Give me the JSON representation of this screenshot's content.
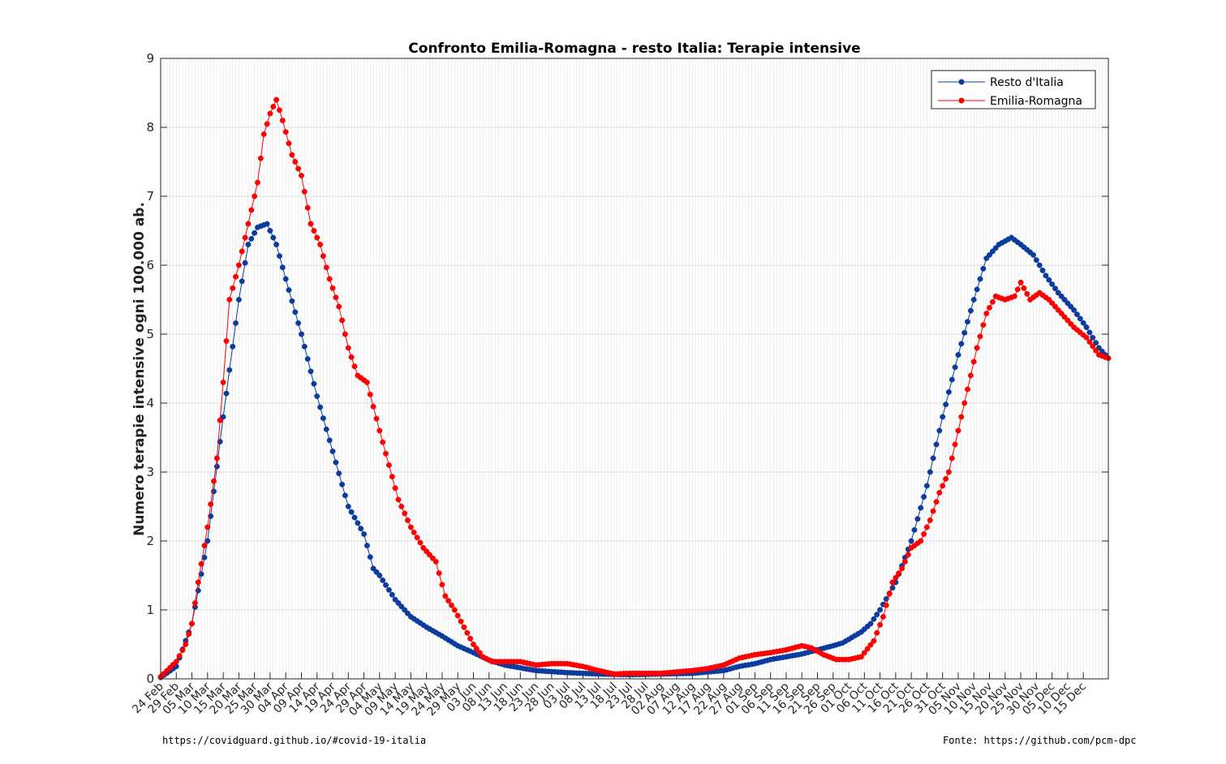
{
  "chart_data": {
    "type": "line",
    "title": "Confronto Emilia-Romagna - resto Italia: Terapie intensive",
    "ylabel": "Numero terapie intensive ogni 100.000 ab.",
    "xlabel": "",
    "ylim": [
      0,
      9
    ],
    "yticks": [
      "0",
      "1",
      "2",
      "3",
      "4",
      "5",
      "6",
      "7",
      "8",
      "9"
    ],
    "grid": true,
    "legend_position": "top-right",
    "x_tick_labels": [
      "24 Feb",
      "29 Feb",
      "05 Mar",
      "10 Mar",
      "15 Mar",
      "20 Mar",
      "25 Mar",
      "30 Mar",
      "04 Apr",
      "09 Apr",
      "14 Apr",
      "19 Apr",
      "24 Apr",
      "29 Apr",
      "04 May",
      "09 May",
      "14 May",
      "19 May",
      "24 May",
      "29 May",
      "03 Jun",
      "08 Jun",
      "13 Jun",
      "18 Jun",
      "23 Jun",
      "28 Jun",
      "03 Jul",
      "08 Jul",
      "13 Jul",
      "18 Jul",
      "23 Jul",
      "28 Jul",
      "02 Aug",
      "07 Aug",
      "12 Aug",
      "17 Aug",
      "22 Aug",
      "27 Aug",
      "01 Sep",
      "06 Sep",
      "11 Sep",
      "16 Sep",
      "21 Sep",
      "26 Sep",
      "01 Oct",
      "06 Oct",
      "11 Oct",
      "16 Oct",
      "21 Oct",
      "26 Oct",
      "31 Oct",
      "05 Nov",
      "10 Nov",
      "15 Nov",
      "20 Nov",
      "25 Nov",
      "30 Nov",
      "05 Dec",
      "10 Dec",
      "15 Dec"
    ],
    "x_start": "24 Feb",
    "series": [
      {
        "name": "Resto d'Italia",
        "color": "#0a3c9e",
        "keypoints": [
          [
            0,
            0.02
          ],
          [
            5,
            0.18
          ],
          [
            10,
            0.8
          ],
          [
            15,
            2.0
          ],
          [
            20,
            3.8
          ],
          [
            25,
            5.5
          ],
          [
            28,
            6.3
          ],
          [
            31,
            6.55
          ],
          [
            34,
            6.6
          ],
          [
            37,
            6.3
          ],
          [
            40,
            5.8
          ],
          [
            45,
            5.0
          ],
          [
            50,
            4.1
          ],
          [
            55,
            3.3
          ],
          [
            60,
            2.5
          ],
          [
            65,
            2.1
          ],
          [
            68,
            1.6
          ],
          [
            70,
            1.5
          ],
          [
            75,
            1.15
          ],
          [
            80,
            0.9
          ],
          [
            85,
            0.75
          ],
          [
            90,
            0.62
          ],
          [
            95,
            0.48
          ],
          [
            100,
            0.38
          ],
          [
            105,
            0.27
          ],
          [
            110,
            0.2
          ],
          [
            115,
            0.16
          ],
          [
            120,
            0.12
          ],
          [
            130,
            0.09
          ],
          [
            140,
            0.07
          ],
          [
            150,
            0.06
          ],
          [
            160,
            0.07
          ],
          [
            170,
            0.08
          ],
          [
            180,
            0.12
          ],
          [
            185,
            0.18
          ],
          [
            190,
            0.22
          ],
          [
            195,
            0.28
          ],
          [
            200,
            0.32
          ],
          [
            205,
            0.36
          ],
          [
            210,
            0.42
          ],
          [
            215,
            0.48
          ],
          [
            218,
            0.52
          ],
          [
            221,
            0.6
          ],
          [
            224,
            0.68
          ],
          [
            227,
            0.8
          ],
          [
            230,
            1.0
          ],
          [
            235,
            1.4
          ],
          [
            240,
            2.0
          ],
          [
            245,
            2.8
          ],
          [
            250,
            3.8
          ],
          [
            255,
            4.7
          ],
          [
            260,
            5.5
          ],
          [
            264,
            6.1
          ],
          [
            268,
            6.3
          ],
          [
            272,
            6.4
          ],
          [
            275,
            6.3
          ],
          [
            279,
            6.15
          ],
          [
            283,
            5.85
          ],
          [
            287,
            5.6
          ],
          [
            292,
            5.35
          ],
          [
            296,
            5.1
          ],
          [
            300,
            4.8
          ],
          [
            303,
            4.65
          ]
        ]
      },
      {
        "name": "Emilia-Romagna",
        "color": "#ff0000",
        "keypoints": [
          [
            0,
            0.03
          ],
          [
            5,
            0.25
          ],
          [
            8,
            0.5
          ],
          [
            10,
            0.8
          ],
          [
            12,
            1.4
          ],
          [
            15,
            2.2
          ],
          [
            18,
            3.2
          ],
          [
            20,
            4.3
          ],
          [
            22,
            5.5
          ],
          [
            25,
            6.0
          ],
          [
            28,
            6.6
          ],
          [
            31,
            7.2
          ],
          [
            33,
            7.9
          ],
          [
            35,
            8.2
          ],
          [
            37,
            8.4
          ],
          [
            39,
            8.1
          ],
          [
            42,
            7.6
          ],
          [
            45,
            7.3
          ],
          [
            48,
            6.6
          ],
          [
            51,
            6.3
          ],
          [
            54,
            5.8
          ],
          [
            57,
            5.4
          ],
          [
            60,
            4.8
          ],
          [
            63,
            4.4
          ],
          [
            66,
            4.3
          ],
          [
            70,
            3.6
          ],
          [
            73,
            3.1
          ],
          [
            76,
            2.6
          ],
          [
            80,
            2.2
          ],
          [
            84,
            1.9
          ],
          [
            88,
            1.7
          ],
          [
            91,
            1.2
          ],
          [
            94,
            1.0
          ],
          [
            97,
            0.75
          ],
          [
            100,
            0.5
          ],
          [
            103,
            0.32
          ],
          [
            106,
            0.25
          ],
          [
            110,
            0.25
          ],
          [
            115,
            0.25
          ],
          [
            120,
            0.2
          ],
          [
            125,
            0.22
          ],
          [
            130,
            0.22
          ],
          [
            135,
            0.18
          ],
          [
            140,
            0.12
          ],
          [
            145,
            0.07
          ],
          [
            150,
            0.08
          ],
          [
            160,
            0.08
          ],
          [
            170,
            0.12
          ],
          [
            175,
            0.15
          ],
          [
            180,
            0.2
          ],
          [
            185,
            0.3
          ],
          [
            190,
            0.35
          ],
          [
            195,
            0.38
          ],
          [
            200,
            0.42
          ],
          [
            205,
            0.48
          ],
          [
            208,
            0.45
          ],
          [
            212,
            0.35
          ],
          [
            216,
            0.28
          ],
          [
            220,
            0.28
          ],
          [
            224,
            0.32
          ],
          [
            228,
            0.55
          ],
          [
            231,
            0.9
          ],
          [
            234,
            1.4
          ],
          [
            237,
            1.6
          ],
          [
            240,
            1.9
          ],
          [
            243,
            2.0
          ],
          [
            246,
            2.3
          ],
          [
            249,
            2.7
          ],
          [
            252,
            3.0
          ],
          [
            255,
            3.6
          ],
          [
            258,
            4.2
          ],
          [
            261,
            4.8
          ],
          [
            264,
            5.3
          ],
          [
            267,
            5.55
          ],
          [
            270,
            5.5
          ],
          [
            273,
            5.55
          ],
          [
            275,
            5.75
          ],
          [
            278,
            5.5
          ],
          [
            281,
            5.6
          ],
          [
            284,
            5.5
          ],
          [
            288,
            5.3
          ],
          [
            292,
            5.1
          ],
          [
            296,
            4.95
          ],
          [
            300,
            4.7
          ],
          [
            303,
            4.65
          ]
        ]
      }
    ]
  },
  "footer": {
    "left": "https://covidguard.github.io/#covid-19-italia",
    "right": "Fonte: https://github.com/pcm-dpc"
  }
}
